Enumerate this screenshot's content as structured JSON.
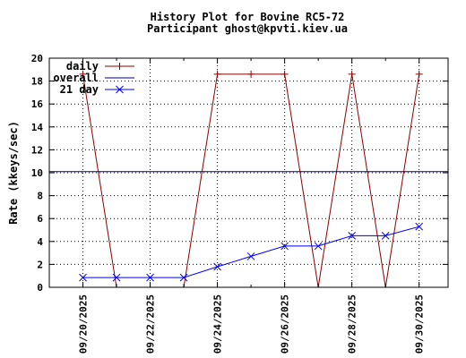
{
  "chart_data": {
    "type": "line",
    "title": "History Plot for Bovine RC5-72",
    "subtitle": "Participant ghost@kpvti.kiev.ua",
    "ylabel": "Rate (kkeys/sec)",
    "xlabel": "",
    "ylim": [
      0,
      20
    ],
    "yticks": [
      0,
      2,
      4,
      6,
      8,
      10,
      12,
      14,
      16,
      18,
      20
    ],
    "xlim": [
      "09/19/2025",
      "09/30/2025"
    ],
    "xticks": [
      "09/20/2025",
      "09/22/2025",
      "09/24/2025",
      "09/26/2025",
      "09/28/2025",
      "09/30/2025"
    ],
    "grid": true,
    "legend_position": "top-left",
    "colors": {
      "daily": "#8b0000",
      "overall": "#000080",
      "day21": "#0000ff"
    },
    "series": [
      {
        "name": "daily",
        "key": "daily",
        "marker": "plus",
        "points": [
          {
            "x": "09/20/2025",
            "y": 18.6
          },
          {
            "x": "09/21/2025",
            "y": 0
          },
          {
            "x": "09/22/2025",
            "y": 0
          },
          {
            "x": "09/23/2025",
            "y": 0
          },
          {
            "x": "09/24/2025",
            "y": 18.6
          },
          {
            "x": "09/25/2025",
            "y": 18.6
          },
          {
            "x": "09/26/2025",
            "y": 18.6
          },
          {
            "x": "09/27/2025",
            "y": 0
          },
          {
            "x": "09/28/2025",
            "y": 18.6
          },
          {
            "x": "09/29/2025",
            "y": 0
          },
          {
            "x": "09/30/2025",
            "y": 18.6
          }
        ]
      },
      {
        "name": "overall",
        "key": "overall",
        "marker": "none",
        "constant": 10.1
      },
      {
        "name": "21 day",
        "key": "day21",
        "marker": "x",
        "points": [
          {
            "x": "09/20/2025",
            "y": 0.85
          },
          {
            "x": "09/21/2025",
            "y": 0.85
          },
          {
            "x": "09/22/2025",
            "y": 0.85
          },
          {
            "x": "09/23/2025",
            "y": 0.85
          },
          {
            "x": "09/24/2025",
            "y": 1.8
          },
          {
            "x": "09/25/2025",
            "y": 2.7
          },
          {
            "x": "09/26/2025",
            "y": 3.6
          },
          {
            "x": "09/27/2025",
            "y": 3.6
          },
          {
            "x": "09/28/2025",
            "y": 4.5
          },
          {
            "x": "09/29/2025",
            "y": 4.5
          },
          {
            "x": "09/30/2025",
            "y": 5.3
          }
        ]
      }
    ]
  }
}
